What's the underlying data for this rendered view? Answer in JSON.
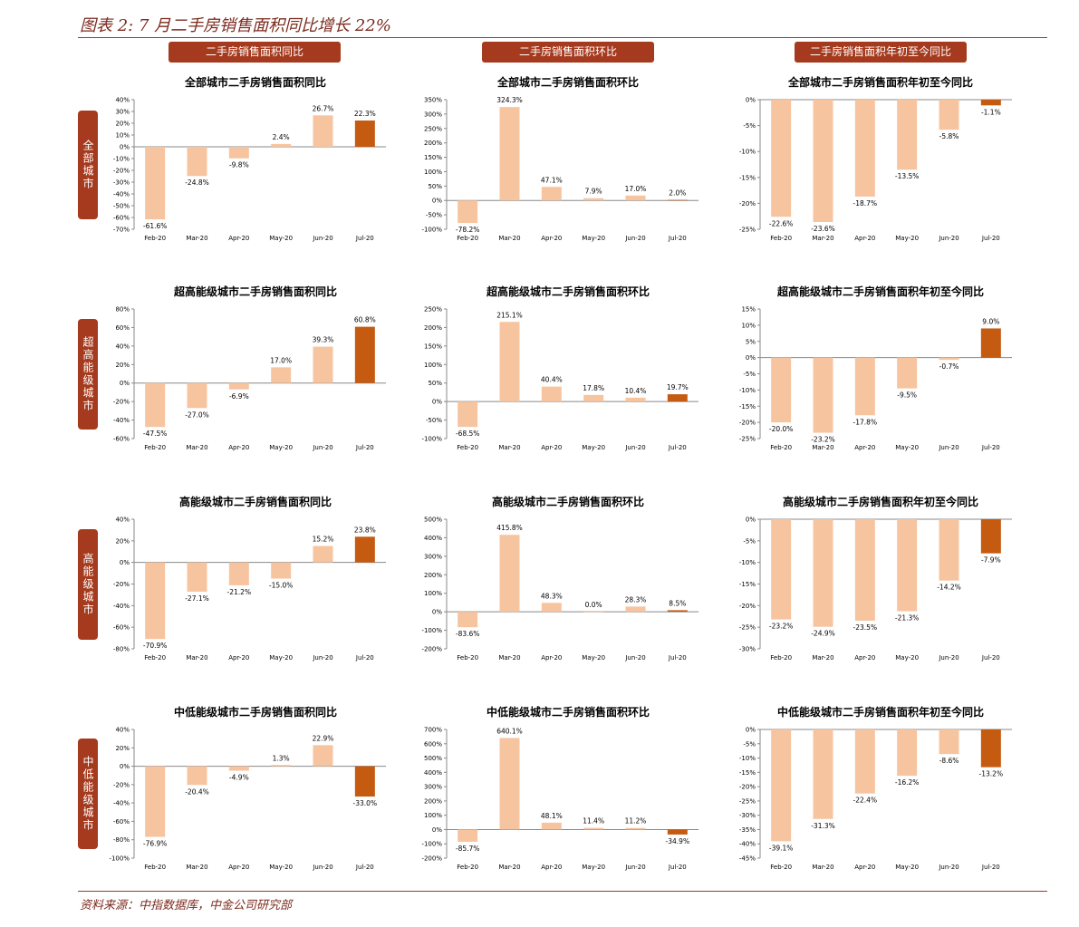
{
  "title": "图表 2: 7 月二手房销售面积同比增长 22%",
  "column_headers": [
    "二手房销售面积同比",
    "二手房销售面积环比",
    "二手房销售面积年初至今同比"
  ],
  "row_labels": [
    "全部城市",
    "超高能级城市",
    "高能级城市",
    "中低能级城市"
  ],
  "source": "资料来源：中指数据库，中金公司研究部",
  "colors": {
    "bar": "#f7c4a0",
    "highlight": "#c55a11",
    "accent": "#a53a1e"
  },
  "chart_data": [
    {
      "type": "bar",
      "title": "全部城市二手房销售面积同比",
      "categories": [
        "Feb-20",
        "Mar-20",
        "Apr-20",
        "May-20",
        "Jun-20",
        "Jul-20"
      ],
      "values": [
        -61.6,
        -24.8,
        -9.8,
        2.4,
        26.7,
        22.3
      ],
      "labels": [
        "-61.6%",
        "-24.8%",
        "-9.8%",
        "2.4%",
        "26.7%",
        "22.3%"
      ],
      "ylim": [
        -70,
        40
      ],
      "ystep": 10,
      "yticks_suffix": "%",
      "grid": false,
      "highlight_last": true
    },
    {
      "type": "bar",
      "title": "全部城市二手房销售面积环比",
      "categories": [
        "Feb-20",
        "Mar-20",
        "Apr-20",
        "May-20",
        "Jun-20",
        "Jul-20"
      ],
      "values": [
        -78.2,
        324.3,
        47.1,
        7.9,
        17.0,
        2.0
      ],
      "labels": [
        "-78.2%",
        "324.3%",
        "47.1%",
        "7.9%",
        "17.0%",
        "2.0%"
      ],
      "ylim": [
        -100,
        350
      ],
      "ystep": 50,
      "yticks_suffix": "%",
      "grid": false,
      "highlight_last": true
    },
    {
      "type": "bar",
      "title": "全部城市二手房销售面积年初至今同比",
      "categories": [
        "Feb-20",
        "Mar-20",
        "Apr-20",
        "May-20",
        "Jun-20",
        "Jul-20"
      ],
      "values": [
        -22.6,
        -23.6,
        -18.7,
        -13.5,
        -5.8,
        -1.1
      ],
      "labels": [
        "-22.6%",
        "-23.6%",
        "-18.7%",
        "-13.5%",
        "-5.8%",
        "-1.1%"
      ],
      "ylim": [
        -25,
        0
      ],
      "ystep": 5,
      "yticks_suffix": "%",
      "grid": false,
      "highlight_last": true
    },
    {
      "type": "bar",
      "title": "超高能级城市二手房销售面积同比",
      "categories": [
        "Feb-20",
        "Mar-20",
        "Apr-20",
        "May-20",
        "Jun-20",
        "Jul-20"
      ],
      "values": [
        -47.5,
        -27.0,
        -6.9,
        17.0,
        39.3,
        60.8
      ],
      "labels": [
        "-47.5%",
        "-27.0%",
        "-6.9%",
        "17.0%",
        "39.3%",
        "60.8%"
      ],
      "ylim": [
        -60,
        80
      ],
      "ystep": 20,
      "yticks_suffix": "%",
      "grid": false,
      "highlight_last": true
    },
    {
      "type": "bar",
      "title": "超高能级城市二手房销售面积环比",
      "categories": [
        "Feb-20",
        "Mar-20",
        "Apr-20",
        "May-20",
        "Jun-20",
        "Jul-20"
      ],
      "values": [
        -68.5,
        215.1,
        40.4,
        17.8,
        10.4,
        19.7
      ],
      "labels": [
        "-68.5%",
        "215.1%",
        "40.4%",
        "17.8%",
        "10.4%",
        "19.7%"
      ],
      "ylim": [
        -100,
        250
      ],
      "ystep": 50,
      "yticks_suffix": "%",
      "grid": false,
      "highlight_last": true
    },
    {
      "type": "bar",
      "title": "超高能级城市二手房销售面积年初至今同比",
      "categories": [
        "Feb-20",
        "Mar-20",
        "Apr-20",
        "May-20",
        "Jun-20",
        "Jul-20"
      ],
      "values": [
        -20.0,
        -23.2,
        -17.8,
        -9.5,
        -0.7,
        9.0
      ],
      "labels": [
        "-20.0%",
        "-23.2%",
        "-17.8%",
        "-9.5%",
        "-0.7%",
        "9.0%"
      ],
      "ylim": [
        -25,
        15
      ],
      "ystep": 5,
      "yticks_suffix": "%",
      "grid": false,
      "highlight_last": true
    },
    {
      "type": "bar",
      "title": "高能级城市二手房销售面积同比",
      "categories": [
        "Feb-20",
        "Mar-20",
        "Apr-20",
        "May-20",
        "Jun-20",
        "Jul-20"
      ],
      "values": [
        -70.9,
        -27.1,
        -21.2,
        -15.0,
        15.2,
        23.8
      ],
      "labels": [
        "-70.9%",
        "-27.1%",
        "-21.2%",
        "-15.0%",
        "15.2%",
        "23.8%"
      ],
      "ylim": [
        -80,
        40
      ],
      "ystep": 20,
      "yticks_suffix": "%",
      "grid": false,
      "highlight_last": true
    },
    {
      "type": "bar",
      "title": "高能级城市二手房销售面积环比",
      "categories": [
        "Feb-20",
        "Mar-20",
        "Apr-20",
        "May-20",
        "Jun-20",
        "Jul-20"
      ],
      "values": [
        -83.6,
        415.8,
        48.3,
        0.0,
        28.3,
        8.5
      ],
      "labels": [
        "-83.6%",
        "415.8%",
        "48.3%",
        "0.0%",
        "28.3%",
        "8.5%"
      ],
      "ylim": [
        -200,
        500
      ],
      "ystep": 100,
      "yticks_suffix": "%",
      "grid": false,
      "highlight_last": true
    },
    {
      "type": "bar",
      "title": "高能级城市二手房销售面积年初至今同比",
      "categories": [
        "Feb-20",
        "Mar-20",
        "Apr-20",
        "May-20",
        "Jun-20",
        "Jul-20"
      ],
      "values": [
        -23.2,
        -24.9,
        -23.5,
        -21.3,
        -14.2,
        -7.9
      ],
      "labels": [
        "-23.2%",
        "-24.9%",
        "-23.5%",
        "-21.3%",
        "-14.2%",
        "-7.9%"
      ],
      "ylim": [
        -30,
        0
      ],
      "ystep": 5,
      "yticks_suffix": "%",
      "grid": false,
      "highlight_last": true
    },
    {
      "type": "bar",
      "title": "中低能级城市二手房销售面积同比",
      "categories": [
        "Feb-20",
        "Mar-20",
        "Apr-20",
        "May-20",
        "Jun-20",
        "Jul-20"
      ],
      "values": [
        -76.9,
        -20.4,
        -4.9,
        1.3,
        22.9,
        -33.0
      ],
      "labels": [
        "-76.9%",
        "-20.4%",
        "-4.9%",
        "1.3%",
        "22.9%",
        "-33.0%"
      ],
      "ylim": [
        -100,
        40
      ],
      "ystep": 20,
      "yticks_suffix": "%",
      "grid": false,
      "highlight_last": true
    },
    {
      "type": "bar",
      "title": "中低能级城市二手房销售面积环比",
      "categories": [
        "Feb-20",
        "Mar-20",
        "Apr-20",
        "May-20",
        "Jun-20",
        "Jul-20"
      ],
      "values": [
        -85.7,
        640.1,
        48.1,
        11.4,
        11.2,
        -34.9
      ],
      "labels": [
        "-85.7%",
        "640.1%",
        "48.1%",
        "11.4%",
        "11.2%",
        "-34.9%"
      ],
      "ylim": [
        -200,
        700
      ],
      "ystep": 100,
      "yticks_suffix": "%",
      "grid": false,
      "highlight_last": true
    },
    {
      "type": "bar",
      "title": "中低能级城市二手房销售面积年初至今同比",
      "categories": [
        "Feb-20",
        "Mar-20",
        "Apr-20",
        "May-20",
        "Jun-20",
        "Jul-20"
      ],
      "values": [
        -39.1,
        -31.3,
        -22.4,
        -16.2,
        -8.6,
        -13.2
      ],
      "labels": [
        "-39.1%",
        "-31.3%",
        "-22.4%",
        "-16.2%",
        "-8.6%",
        "-13.2%"
      ],
      "ylim": [
        -45,
        0
      ],
      "ystep": 5,
      "yticks_suffix": "%",
      "grid": false,
      "highlight_last": true
    }
  ]
}
